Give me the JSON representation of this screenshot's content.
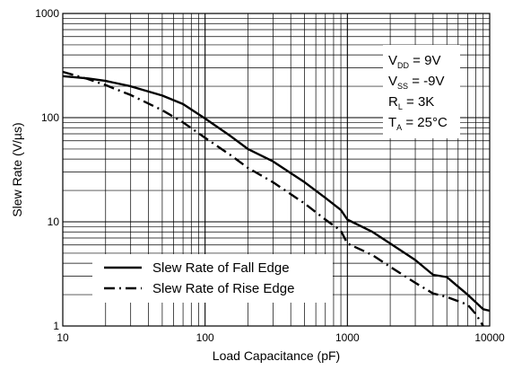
{
  "chart_data": {
    "type": "line",
    "title": "",
    "xlabel": "Load Capacitance (pF)",
    "ylabel": "Slew Rate (V/µs)",
    "xscale": "log",
    "yscale": "log",
    "xlim": [
      10,
      10000
    ],
    "ylim": [
      1,
      1000
    ],
    "grid": true,
    "legend_position": "bottom-left",
    "x_tick_labels": [
      "10",
      "100",
      "1000",
      "10000"
    ],
    "y_tick_labels": [
      "1",
      "10",
      "100",
      "1000"
    ],
    "series": [
      {
        "name": "Slew Rate of Fall Edge",
        "line_style": "solid",
        "color": "#000000",
        "points": [
          [
            10,
            250
          ],
          [
            15,
            238
          ],
          [
            20,
            225
          ],
          [
            30,
            200
          ],
          [
            50,
            163
          ],
          [
            70,
            135
          ],
          [
            100,
            98
          ],
          [
            150,
            67
          ],
          [
            200,
            50
          ],
          [
            300,
            38
          ],
          [
            500,
            24
          ],
          [
            700,
            17
          ],
          [
            900,
            13
          ],
          [
            1000,
            10.5
          ],
          [
            1500,
            8
          ],
          [
            2000,
            6.2
          ],
          [
            3000,
            4.3
          ],
          [
            4000,
            3.1
          ],
          [
            5000,
            2.95
          ],
          [
            7000,
            2.0
          ],
          [
            9000,
            1.45
          ],
          [
            10000,
            1.4
          ]
        ]
      },
      {
        "name": "Slew Rate of Rise Edge",
        "line_style": "dashdot",
        "color": "#000000",
        "points": [
          [
            10,
            275
          ],
          [
            15,
            235
          ],
          [
            20,
            205
          ],
          [
            30,
            165
          ],
          [
            50,
            118
          ],
          [
            70,
            90
          ],
          [
            100,
            64
          ],
          [
            150,
            44
          ],
          [
            200,
            33
          ],
          [
            300,
            24
          ],
          [
            500,
            15
          ],
          [
            700,
            10.5
          ],
          [
            900,
            8.2
          ],
          [
            1000,
            6.2
          ],
          [
            1500,
            4.8
          ],
          [
            2000,
            3.7
          ],
          [
            3000,
            2.6
          ],
          [
            4000,
            2.05
          ],
          [
            5000,
            1.9
          ],
          [
            7000,
            1.6
          ],
          [
            8000,
            1.3
          ],
          [
            9000,
            1.0
          ]
        ]
      }
    ],
    "annotation_lines": [
      {
        "main": "V",
        "sub": "DD",
        "rest": " = 9V"
      },
      {
        "main": "V",
        "sub": "SS",
        "rest": " = -9V"
      },
      {
        "main": "R",
        "sub": "L",
        "rest": " = 3K"
      },
      {
        "main": "T",
        "sub": "A",
        "rest": " = 25°C"
      }
    ]
  }
}
